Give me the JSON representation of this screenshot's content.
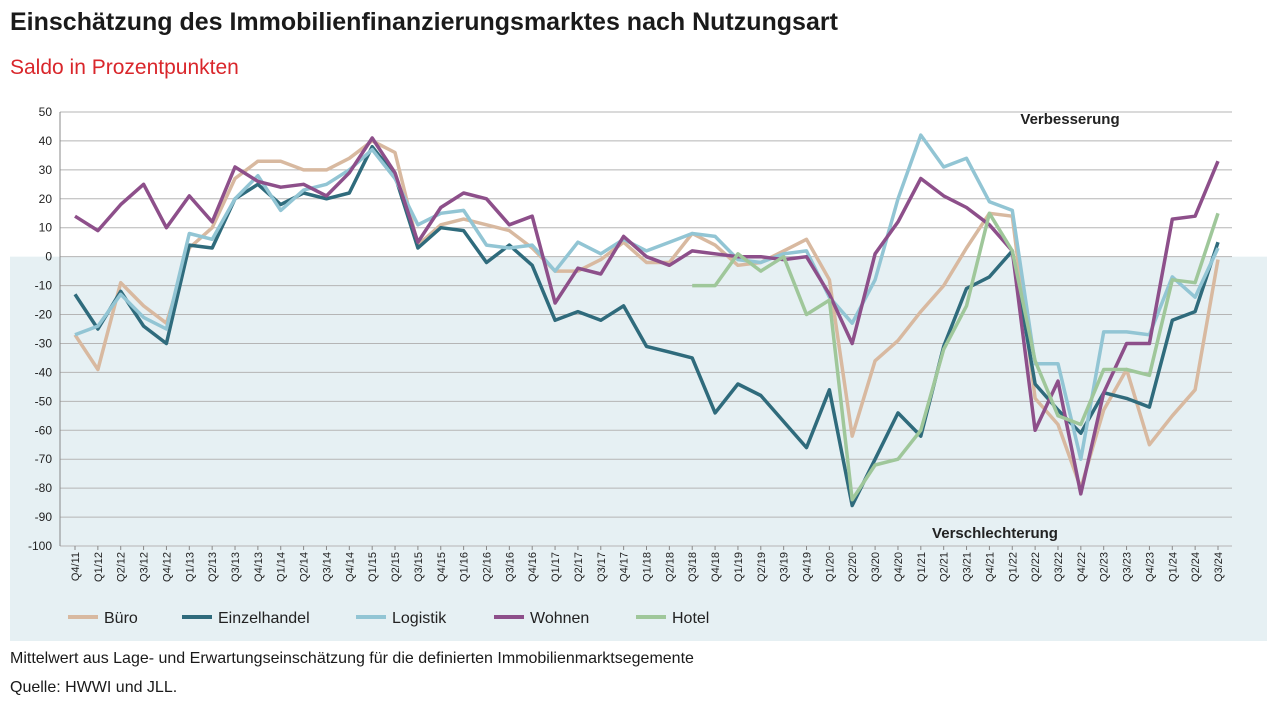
{
  "chart_data": {
    "type": "line",
    "title": "Einschätzung des Immobilienfinanzierungsmarktes nach Nutzungsart",
    "subtitle": "Saldo in Prozentpunkten",
    "annotations": [
      "Verbesserung",
      "Verschlechterung"
    ],
    "notes": [
      "Mittelwert aus Lage- und Erwartungseinschätzung für die definierten Immobilienmarktsegemente",
      "Quelle: HWWI und JLL."
    ],
    "categories": [
      "Q4/11",
      "Q1/12",
      "Q2/12",
      "Q3/12",
      "Q4/12",
      "Q1/13",
      "Q2/13",
      "Q3/13",
      "Q4/13",
      "Q1/14",
      "Q2/14",
      "Q3/14",
      "Q4/14",
      "Q1/15",
      "Q2/15",
      "Q3/15",
      "Q4/15",
      "Q1/16",
      "Q2/16",
      "Q3/16",
      "Q4/16",
      "Q1/17",
      "Q2/17",
      "Q3/17",
      "Q4/17",
      "Q1/18",
      "Q2/18",
      "Q3/18",
      "Q4/18",
      "Q1/19",
      "Q2/19",
      "Q3/19",
      "Q4/19",
      "Q1/20",
      "Q2/20",
      "Q3/20",
      "Q4/20",
      "Q1/21",
      "Q2/21",
      "Q3/21",
      "Q4/21",
      "Q1/22",
      "Q2/22",
      "Q3/22",
      "Q4/22",
      "Q2/23",
      "Q3/23",
      "Q4/23",
      "Q1/24",
      "Q2/24",
      "Q3/24"
    ],
    "ylim": [
      -100,
      50
    ],
    "yticks": [
      50,
      40,
      30,
      20,
      10,
      0,
      -10,
      -20,
      -30,
      -40,
      -50,
      -60,
      -70,
      -80,
      -90,
      -100
    ],
    "grid": true,
    "series": [
      {
        "name": "Büro",
        "color": "#d8b9a0",
        "values": [
          -27,
          -39,
          -9,
          -17,
          -23,
          3,
          10,
          27,
          33,
          33,
          30,
          30,
          34,
          40,
          36,
          4,
          11,
          13,
          11,
          9,
          3,
          -5,
          -5,
          -1,
          5,
          -2,
          -2,
          8,
          4,
          -3,
          -2,
          2,
          6,
          -8,
          -62,
          -36,
          -29,
          -19,
          -10,
          3,
          15,
          14,
          -49,
          -58,
          -80,
          -53,
          -39,
          -65,
          -55,
          -46,
          -1
        ]
      },
      {
        "name": "Einzelhandel",
        "color": "#2f6b7c",
        "values": [
          -13,
          -25,
          -12,
          -24,
          -30,
          4,
          3,
          20,
          25,
          18,
          22,
          20,
          22,
          38,
          28,
          3,
          10,
          9,
          -2,
          4,
          -3,
          -22,
          -19,
          -22,
          -17,
          -31,
          -33,
          -35,
          -54,
          -44,
          -48,
          -57,
          -66,
          -46,
          -86,
          -70,
          -54,
          -62,
          -31,
          -11,
          -7,
          2,
          -44,
          -53,
          -61,
          -47,
          -49,
          -52,
          -22,
          -19,
          5
        ]
      },
      {
        "name": "Logistik",
        "color": "#92c5d4",
        "values": [
          -27,
          -24,
          -13,
          -21,
          -25,
          8,
          6,
          20,
          28,
          16,
          23,
          25,
          30,
          37,
          27,
          11,
          15,
          16,
          4,
          3,
          4,
          -5,
          5,
          1,
          6,
          2,
          5,
          8,
          7,
          -1,
          -2,
          1,
          2,
          -14,
          -23,
          -8,
          20,
          42,
          31,
          34,
          19,
          16,
          -37,
          -37,
          -70,
          -26,
          -26,
          -27,
          -7,
          -14,
          3
        ]
      },
      {
        "name": "Wohnen",
        "color": "#8d4f8a",
        "values": [
          14,
          9,
          18,
          25,
          10,
          21,
          12,
          31,
          26,
          24,
          25,
          21,
          29,
          41,
          29,
          5,
          17,
          22,
          20,
          11,
          14,
          -16,
          -4,
          -6,
          7,
          0,
          -3,
          2,
          1,
          0,
          0,
          -1,
          0,
          -13,
          -30,
          1,
          12,
          27,
          21,
          17,
          11,
          2,
          -60,
          -43,
          -82,
          -47,
          -30,
          -30,
          13,
          14,
          33
        ]
      },
      {
        "name": "Hotel",
        "color": "#9fc79a",
        "values": [
          null,
          null,
          null,
          null,
          null,
          null,
          null,
          null,
          null,
          null,
          null,
          null,
          null,
          null,
          null,
          null,
          null,
          null,
          null,
          null,
          null,
          null,
          null,
          null,
          null,
          null,
          null,
          -10,
          -10,
          1,
          -5,
          0,
          -20,
          -15,
          -84,
          -72,
          -70,
          -60,
          -32,
          -17,
          15,
          2,
          -36,
          -55,
          -58,
          -39,
          -39,
          -41,
          -8,
          -9,
          15
        ]
      }
    ]
  }
}
